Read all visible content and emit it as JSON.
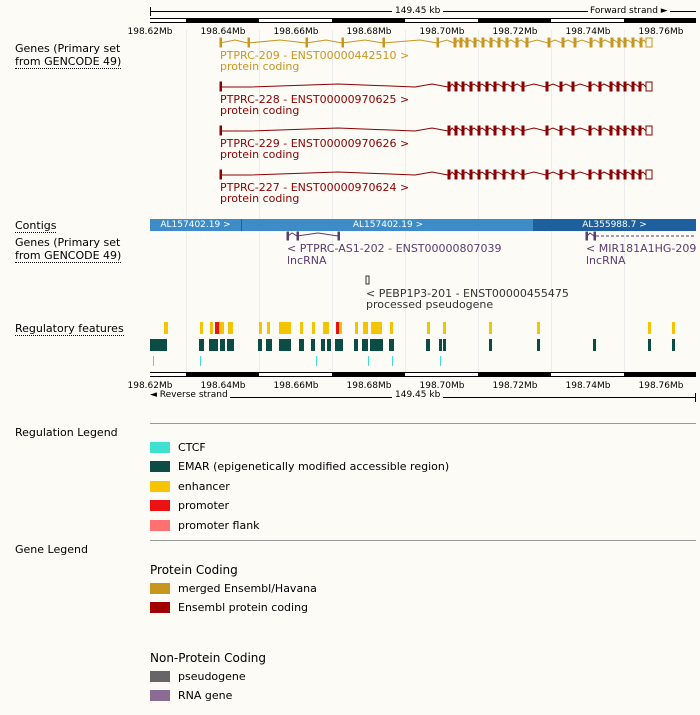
{
  "top_ruler": {
    "span_label": "149.45 kb",
    "strand_label": "Forward strand",
    "ticks": [
      "198.62Mb",
      "198.64Mb",
      "198.66Mb",
      "198.68Mb",
      "198.70Mb",
      "198.72Mb",
      "198.74Mb",
      "198.76Mb"
    ]
  },
  "bottom_ruler": {
    "span_label": "149.45 kb",
    "strand_label": "Reverse strand",
    "ticks": [
      "198.62Mb",
      "198.64Mb",
      "198.66Mb",
      "198.68Mb",
      "198.70Mb",
      "198.72Mb",
      "198.74Mb",
      "198.76Mb"
    ]
  },
  "tracks": {
    "genes_forward_label_1": "Genes (Primary set",
    "genes_forward_label_2": "from GENCODE 49)",
    "contigs_label": "Contigs",
    "genes_reverse_label_1": "Genes (Primary set",
    "genes_reverse_label_2": "from GENCODE 49)",
    "regulatory_label": "Regulatory features"
  },
  "transcripts_forward": [
    {
      "name": "PTPRC-209 - ENST00000442510 >",
      "biotype": "protein coding",
      "color": "#c8961e"
    },
    {
      "name": "PTPRC-228 - ENST00000970625 >",
      "biotype": "protein coding",
      "color": "#8b0000"
    },
    {
      "name": "PTPRC-229 - ENST00000970626 >",
      "biotype": "protein coding",
      "color": "#8b0000"
    },
    {
      "name": "PTPRC-227 - ENST00000970624 >",
      "biotype": "protein coding",
      "color": "#8b0000"
    }
  ],
  "contigs": [
    {
      "label": "AL157402.19 >",
      "color": "#3d8cc7"
    },
    {
      "label": "AL157402.19 >",
      "color": "#3d8cc7"
    },
    {
      "label": "AL355988.7 >",
      "color": "#1e5f9e"
    }
  ],
  "transcripts_reverse": [
    {
      "name": "< PTPRC-AS1-202 - ENST00000807039",
      "biotype": "lncRNA",
      "color": "#5a3c70"
    },
    {
      "name": "< MIR181A1HG-209 -",
      "biotype": "lncRNA",
      "color": "#5a3c70"
    },
    {
      "name": "< PEBP1P3-201 - ENST00000455475",
      "biotype": "processed pseudogene",
      "color": "#333333"
    }
  ],
  "regulation_legend": {
    "title": "Regulation Legend",
    "items": [
      {
        "label": "CTCF",
        "color": "#40e0d0"
      },
      {
        "label": "EMAR (epigenetically modified accessible region)",
        "color": "#0b4d45"
      },
      {
        "label": "enhancer",
        "color": "#f5c400"
      },
      {
        "label": "promoter",
        "color": "#ee1111"
      },
      {
        "label": "promoter flank",
        "color": "#ff7070"
      }
    ]
  },
  "gene_legend": {
    "title": "Gene Legend",
    "protein_coding_title": "Protein Coding",
    "protein_coding_items": [
      {
        "label": "merged Ensembl/Havana",
        "color": "#c8961e"
      },
      {
        "label": "Ensembl protein coding",
        "color": "#a00000"
      }
    ],
    "non_protein_title": "Non-Protein Coding",
    "non_protein_items": [
      {
        "label": "pseudogene",
        "color": "#666666"
      },
      {
        "label": "RNA gene",
        "color": "#8b6a93"
      }
    ]
  }
}
